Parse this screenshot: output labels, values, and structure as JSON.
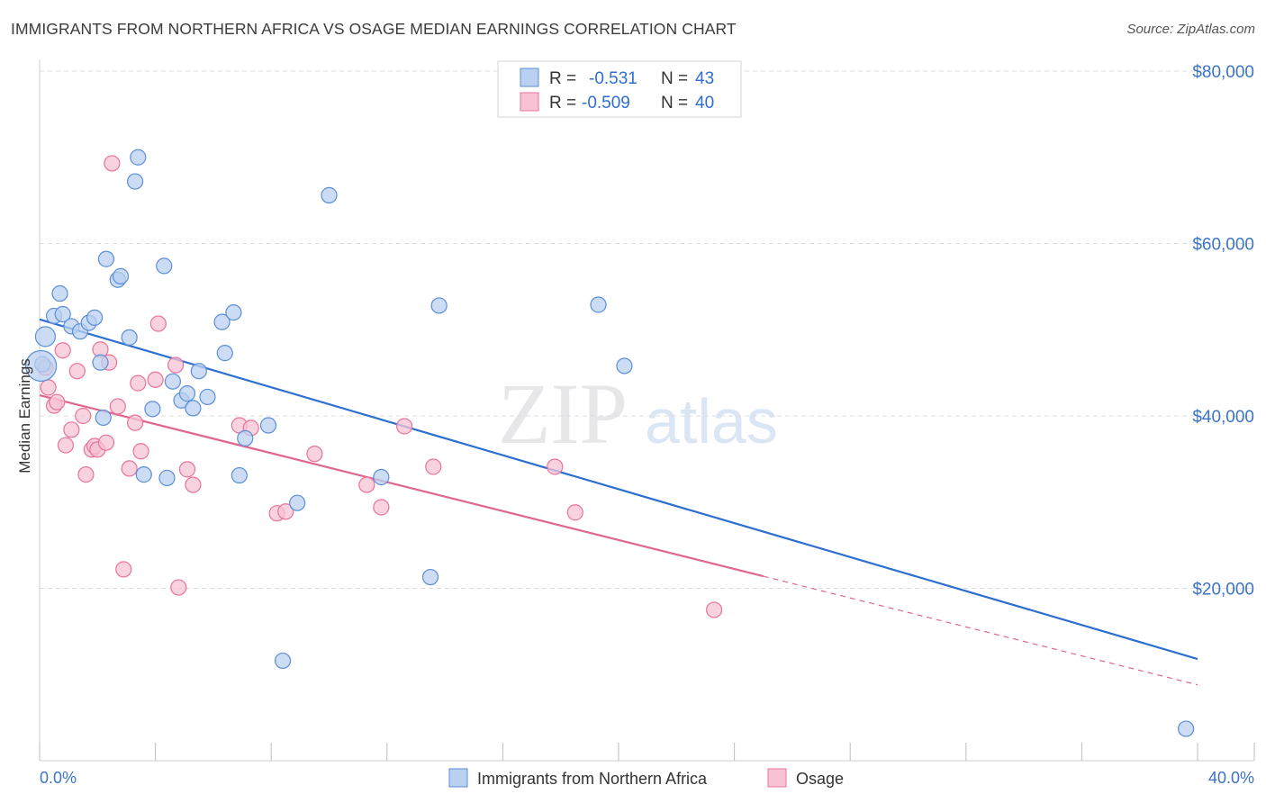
{
  "title": "IMMIGRANTS FROM NORTHERN AFRICA VS OSAGE MEDIAN EARNINGS CORRELATION CHART",
  "source": "Source: ZipAtlas.com",
  "watermark": {
    "zip": "ZIP",
    "atlas": "atlas"
  },
  "colors": {
    "blue": "#5b8fd6",
    "blue_fill": "#b9d0f0",
    "pink": "#e8739c",
    "pink_fill": "#f7c3d4",
    "grid": "#dddddd"
  },
  "legend": {
    "r_label": "R =",
    "n_label": "N =",
    "rows": [
      {
        "r": "-0.531",
        "n": "43"
      },
      {
        "r": "-0.509",
        "n": "40"
      }
    ]
  },
  "chart_data": {
    "type": "scatter",
    "xlabel": "",
    "ylabel": "Median Earnings",
    "xlim": [
      0,
      40
    ],
    "ylim": [
      0,
      80000
    ],
    "x_tick_labels": [
      "0.0%",
      "40.0%"
    ],
    "y_ticks": [
      {
        "value": 20000,
        "label": "$20,000"
      },
      {
        "value": 40000,
        "label": "$40,000"
      },
      {
        "value": 60000,
        "label": "$60,000"
      },
      {
        "value": 80000,
        "label": "$80,000"
      }
    ],
    "series": [
      {
        "name": "Immigrants from Northern Africa",
        "color": "blue",
        "trend": {
          "x0": 0,
          "y0": 51200,
          "x1": 40,
          "y1": 11800
        },
        "points": [
          [
            0.1,
            46000
          ],
          [
            0.2,
            49200
          ],
          [
            0.5,
            51600
          ],
          [
            0.7,
            54200
          ],
          [
            0.8,
            51800
          ],
          [
            1.1,
            50400
          ],
          [
            1.4,
            49800
          ],
          [
            1.7,
            50800
          ],
          [
            1.9,
            51400
          ],
          [
            2.1,
            46200
          ],
          [
            2.2,
            39800
          ],
          [
            2.3,
            58200
          ],
          [
            2.7,
            55800
          ],
          [
            2.8,
            56200
          ],
          [
            3.1,
            49100
          ],
          [
            3.3,
            67200
          ],
          [
            3.4,
            70000
          ],
          [
            3.6,
            33200
          ],
          [
            3.9,
            40800
          ],
          [
            4.3,
            57400
          ],
          [
            4.4,
            32800
          ],
          [
            4.6,
            44000
          ],
          [
            4.9,
            41800
          ],
          [
            5.1,
            42600
          ],
          [
            5.3,
            40900
          ],
          [
            5.5,
            45200
          ],
          [
            5.8,
            42200
          ],
          [
            6.3,
            50900
          ],
          [
            6.4,
            47300
          ],
          [
            6.7,
            52000
          ],
          [
            6.9,
            33100
          ],
          [
            7.1,
            37400
          ],
          [
            7.9,
            38900
          ],
          [
            8.4,
            11600
          ],
          [
            8.9,
            29900
          ],
          [
            10.0,
            65600
          ],
          [
            11.8,
            32900
          ],
          [
            13.5,
            21300
          ],
          [
            13.8,
            52800
          ],
          [
            19.3,
            52900
          ],
          [
            20.2,
            45800
          ],
          [
            39.6,
            3700
          ],
          [
            0.05,
            45800
          ]
        ]
      },
      {
        "name": "Osage",
        "color": "pink",
        "trend": {
          "x0": 0,
          "y0": 42400,
          "x1": 25,
          "y1": 21400,
          "dash_to_x": 40,
          "dash_to_y": 8800
        },
        "points": [
          [
            0.2,
            45600
          ],
          [
            0.3,
            43300
          ],
          [
            0.5,
            41200
          ],
          [
            0.6,
            41600
          ],
          [
            0.8,
            47600
          ],
          [
            0.9,
            36600
          ],
          [
            1.1,
            38400
          ],
          [
            1.3,
            45200
          ],
          [
            1.5,
            40000
          ],
          [
            1.6,
            33200
          ],
          [
            1.8,
            36100
          ],
          [
            1.9,
            36500
          ],
          [
            2.0,
            36100
          ],
          [
            2.1,
            47700
          ],
          [
            2.3,
            36900
          ],
          [
            2.4,
            46200
          ],
          [
            2.5,
            69300
          ],
          [
            2.7,
            41100
          ],
          [
            2.9,
            22200
          ],
          [
            3.1,
            33900
          ],
          [
            3.3,
            39200
          ],
          [
            3.4,
            43800
          ],
          [
            3.5,
            35900
          ],
          [
            4.0,
            44200
          ],
          [
            4.1,
            50700
          ],
          [
            4.7,
            45900
          ],
          [
            4.8,
            20100
          ],
          [
            5.1,
            33800
          ],
          [
            5.3,
            32000
          ],
          [
            6.9,
            38900
          ],
          [
            7.3,
            38600
          ],
          [
            8.2,
            28700
          ],
          [
            8.5,
            28900
          ],
          [
            9.5,
            35600
          ],
          [
            11.3,
            32000
          ],
          [
            11.8,
            29400
          ],
          [
            12.6,
            38800
          ],
          [
            13.6,
            34100
          ],
          [
            17.8,
            34100
          ],
          [
            18.5,
            28800
          ]
        ],
        "outlier": [
          23.3,
          17500
        ]
      }
    ]
  }
}
